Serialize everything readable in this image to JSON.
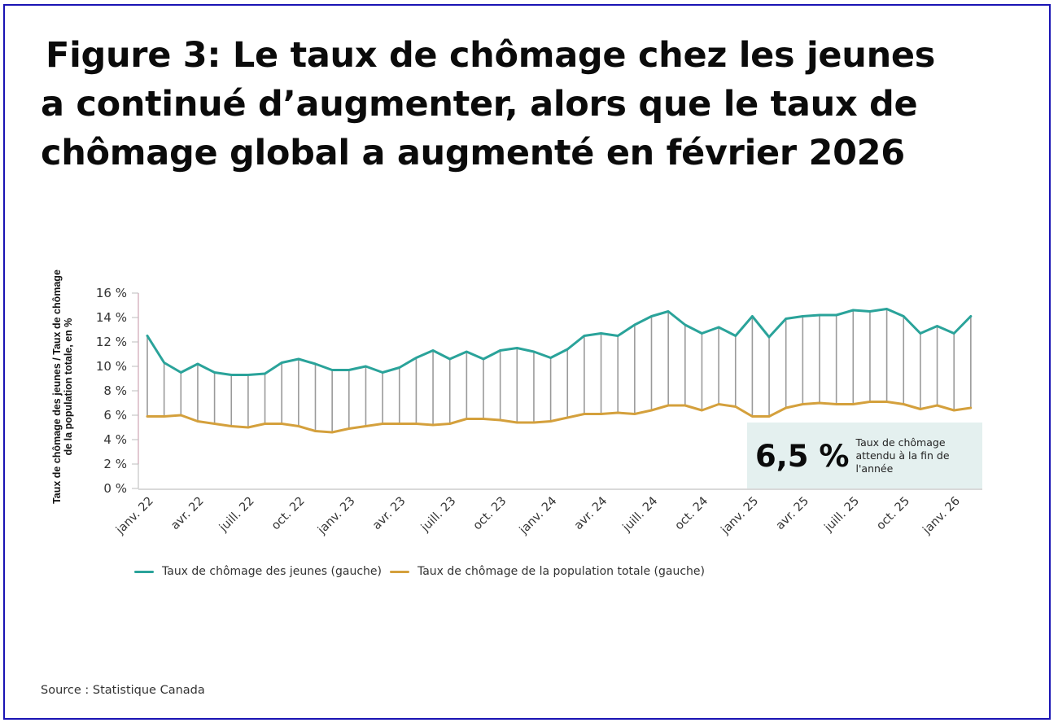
{
  "title_lines": [
    "Figure 3: Le taux de chômage chez les jeunes",
    "a continué d’augmenter, alors que le taux de",
    "chômage global a augmenté en février 2026"
  ],
  "source": "Source : Statistique Canada",
  "annotation": {
    "value": "6,5 %",
    "text": "Taux de chômage attendu à la fin de l'année"
  },
  "colors": {
    "youth": "#2aa39a",
    "total": "#d4a03c",
    "connector": "#9a9a9a",
    "frame": "#1a14b4",
    "annotation_bg": "#e4f0ef"
  },
  "chart_data": {
    "type": "line",
    "title": "Figure 3: Le taux de chômage chez les jeunes a continué d’augmenter, alors que le taux de chômage global a augmenté en février 2026",
    "ylabel": "Taux de chômage des jeunes / Taux de chômage de la population totale, en %",
    "xlabel": "",
    "ylim": [
      0,
      16
    ],
    "yticks": [
      0,
      2,
      4,
      6,
      8,
      10,
      12,
      14,
      16
    ],
    "ytick_labels": [
      "0 %",
      "2 %",
      "4 %",
      "6 %",
      "8 %",
      "10 %",
      "12 %",
      "14 %",
      "16 %"
    ],
    "x": [
      "2022-01",
      "2022-02",
      "2022-03",
      "2022-04",
      "2022-05",
      "2022-06",
      "2022-07",
      "2022-08",
      "2022-09",
      "2022-10",
      "2022-11",
      "2022-12",
      "2023-01",
      "2023-02",
      "2023-03",
      "2023-04",
      "2023-05",
      "2023-06",
      "2023-07",
      "2023-08",
      "2023-09",
      "2023-10",
      "2023-11",
      "2023-12",
      "2024-01",
      "2024-02",
      "2024-03",
      "2024-04",
      "2024-05",
      "2024-06",
      "2024-07",
      "2024-08",
      "2024-09",
      "2024-10",
      "2024-11",
      "2024-12",
      "2025-01",
      "2025-02",
      "2025-03",
      "2025-04",
      "2025-05",
      "2025-06",
      "2025-07",
      "2025-08",
      "2025-09",
      "2025-10",
      "2025-11",
      "2025-12",
      "2026-01",
      "2026-02"
    ],
    "xtick_labels": [
      {
        "index": 0,
        "label": "janv. 22"
      },
      {
        "index": 3,
        "label": "avr. 22"
      },
      {
        "index": 6,
        "label": "juill. 22"
      },
      {
        "index": 9,
        "label": "oct. 22"
      },
      {
        "index": 12,
        "label": "janv. 23"
      },
      {
        "index": 15,
        "label": "avr. 23"
      },
      {
        "index": 18,
        "label": "juill. 23"
      },
      {
        "index": 21,
        "label": "oct. 23"
      },
      {
        "index": 24,
        "label": "janv. 24"
      },
      {
        "index": 27,
        "label": "avr. 24"
      },
      {
        "index": 30,
        "label": "juill. 24"
      },
      {
        "index": 33,
        "label": "oct. 24"
      },
      {
        "index": 36,
        "label": "janv. 25"
      },
      {
        "index": 39,
        "label": "avr. 25"
      },
      {
        "index": 42,
        "label": "juill. 25"
      },
      {
        "index": 45,
        "label": "oct. 25"
      },
      {
        "index": 48,
        "label": "janv. 26"
      }
    ],
    "series": [
      {
        "name": "Taux de chômage des jeunes (gauche)",
        "color": "#2aa39a",
        "values": [
          12.5,
          10.3,
          9.5,
          10.2,
          9.5,
          9.3,
          9.3,
          9.4,
          10.3,
          10.6,
          10.2,
          9.7,
          9.7,
          10.0,
          9.5,
          9.9,
          10.7,
          11.3,
          10.6,
          11.2,
          10.6,
          11.3,
          11.5,
          11.2,
          10.7,
          11.4,
          12.5,
          12.7,
          12.5,
          13.4,
          14.1,
          14.5,
          13.4,
          12.7,
          13.2,
          12.5,
          14.1,
          12.4,
          13.9,
          14.1,
          14.2,
          14.2,
          14.6,
          14.5,
          14.7,
          14.1,
          12.7,
          13.3,
          12.7,
          14.1
        ]
      },
      {
        "name": "Taux de chômage de la population totale (gauche)",
        "color": "#d4a03c",
        "values": [
          5.9,
          5.9,
          6.0,
          5.5,
          5.3,
          5.1,
          5.0,
          5.3,
          5.3,
          5.1,
          4.7,
          4.6,
          4.9,
          5.1,
          5.3,
          5.3,
          5.3,
          5.2,
          5.3,
          5.7,
          5.7,
          5.6,
          5.4,
          5.4,
          5.5,
          5.8,
          6.1,
          6.1,
          6.2,
          6.1,
          6.4,
          6.8,
          6.8,
          6.4,
          6.9,
          6.7,
          5.9,
          5.9,
          6.6,
          6.9,
          7.0,
          6.9,
          6.9,
          7.1,
          7.1,
          6.9,
          6.5,
          6.8,
          6.4,
          6.6
        ]
      }
    ],
    "legend_position": "bottom",
    "grid": false
  }
}
